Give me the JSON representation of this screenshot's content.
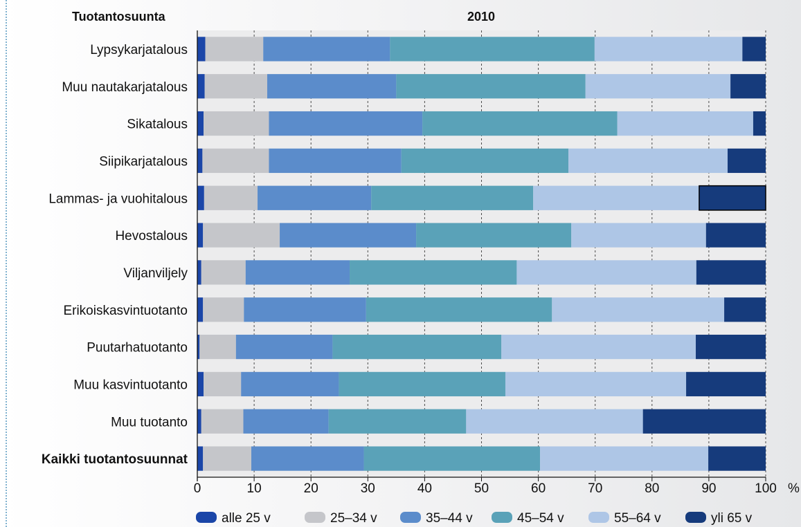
{
  "chart_data": {
    "type": "bar",
    "orientation": "horizontal",
    "stacked": true,
    "title": "2010",
    "category_header": "Tuotantosuunta",
    "unit": "%",
    "xlim": [
      0,
      100
    ],
    "xticks": [
      0,
      10,
      20,
      30,
      40,
      50,
      60,
      70,
      80,
      90,
      100
    ],
    "grid": true,
    "legend_position": "bottom",
    "categories": [
      "Lypsykarjatalous",
      "Muu nautakarjatalous",
      "Sikatalous",
      "Siipikarjatalous",
      "Lammas- ja vuohitalous",
      "Hevostalous",
      "Viljanviljely",
      "Erikoiskasvintuotanto",
      "Puutarhatuotanto",
      "Muu kasvintuotanto",
      "Muu tuotanto",
      "Kaikki tuotantosuunnat"
    ],
    "bold_categories": [
      "Kaikki tuotantosuunnat"
    ],
    "series": [
      {
        "name": "alle 25 v",
        "color": "#1b46a8",
        "values": [
          1.4,
          1.3,
          1.1,
          0.9,
          1.2,
          1.0,
          0.7,
          1.0,
          0.4,
          1.1,
          0.7,
          1.0
        ]
      },
      {
        "name": "25–34 v",
        "color": "#c5c6ca",
        "values": [
          10.2,
          11.0,
          11.5,
          11.7,
          9.4,
          13.5,
          7.8,
          7.2,
          6.4,
          6.6,
          7.4,
          8.5
        ]
      },
      {
        "name": "35–44 v",
        "color": "#5b8ccb",
        "values": [
          22.3,
          22.7,
          27.0,
          23.3,
          20.0,
          24.0,
          18.3,
          21.5,
          17.0,
          17.2,
          15.0,
          19.8
        ]
      },
      {
        "name": "45–54 v",
        "color": "#5aa2b8",
        "values": [
          36.0,
          33.3,
          34.3,
          29.4,
          28.5,
          27.3,
          29.4,
          32.7,
          29.7,
          29.3,
          24.2,
          31.0
        ]
      },
      {
        "name": "55–64 v",
        "color": "#aec6e6",
        "values": [
          26.0,
          25.5,
          23.9,
          28.0,
          29.2,
          23.7,
          31.6,
          30.3,
          34.2,
          31.8,
          31.1,
          29.6
        ]
      },
      {
        "name": "yli 65 v",
        "color": "#163b7c",
        "values": [
          4.1,
          6.2,
          2.2,
          6.7,
          11.7,
          10.5,
          12.2,
          7.3,
          12.3,
          14.0,
          21.6,
          10.1
        ]
      }
    ],
    "highlighted_segment": {
      "category": "Lammas- ja vuohitalous",
      "series": "yli 65 v"
    }
  }
}
